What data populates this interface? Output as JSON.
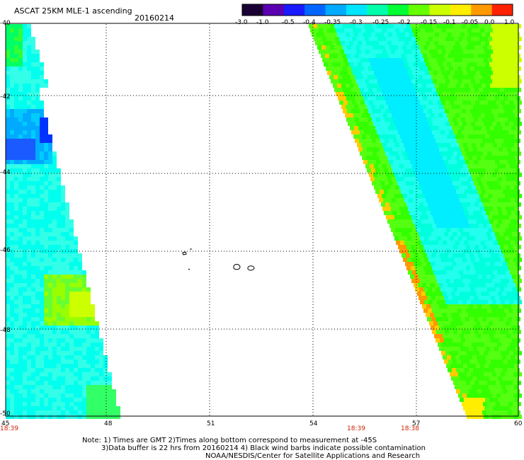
{
  "header": {
    "title": "ASCAT 25KM MLE-1 ascending",
    "date": "20160214"
  },
  "colorbar": {
    "labels": [
      "-3.0",
      "-1.0",
      "-0.5",
      "-0.4",
      "-0.35",
      "-0.3",
      "-0.25",
      "-0.2",
      "-0.15",
      "-0.1",
      "-0.05",
      "0.0",
      "1.0"
    ],
    "colors": [
      "#1a0033",
      "#5a00b0",
      "#1a1aff",
      "#0066ff",
      "#00aaff",
      "#00e5ff",
      "#00ffaa",
      "#00ff33",
      "#66ff00",
      "#ccff00",
      "#ffee00",
      "#ff9900",
      "#ff2200"
    ]
  },
  "axes": {
    "lat_labels": [
      "-40",
      "-42",
      "-44",
      "-46",
      "-48",
      "-50"
    ],
    "lon_labels": [
      "45",
      "48",
      "51",
      "54",
      "57",
      "60"
    ],
    "time_labels": [
      "18:39",
      "18:39",
      "18:38"
    ]
  },
  "notes": {
    "line1": "Note: 1) Times are GMT 2)Times along bottom correspond to measurement at -45S",
    "line2": "3)Data buffer is 22 hrs from 20160214 4) Black wind barbs indicate possible contamination",
    "line3": "NOAA/NESDIS/Center for Satellite Applications and Research"
  }
}
